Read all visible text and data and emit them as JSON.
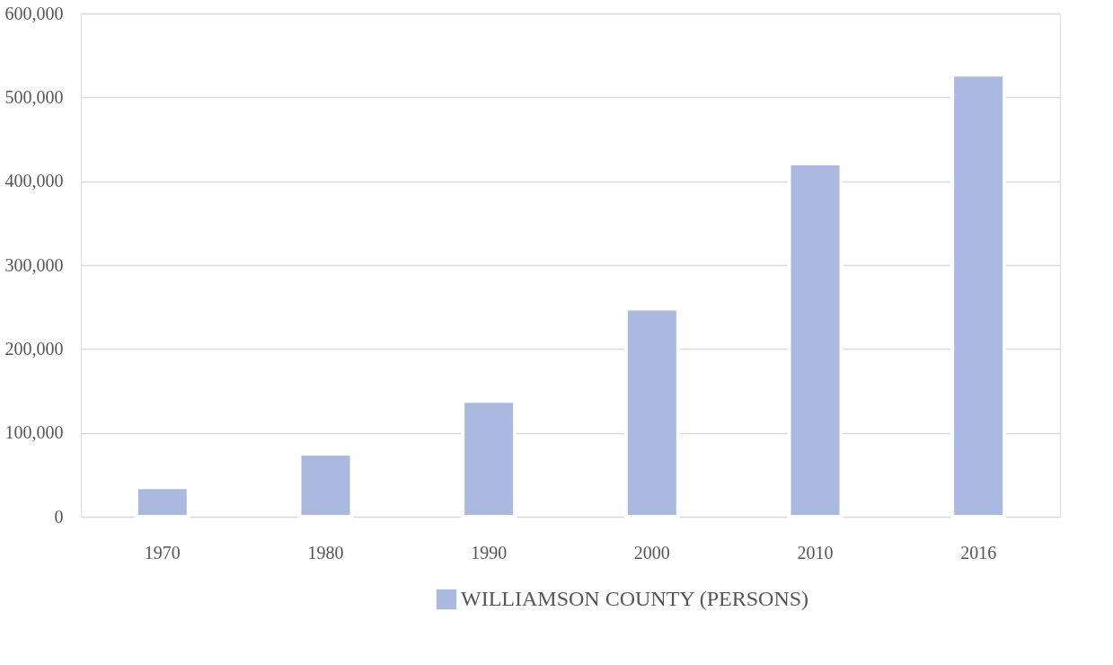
{
  "chart_data": {
    "type": "bar",
    "categories": [
      "1970",
      "1980",
      "1990",
      "2000",
      "2010",
      "2016"
    ],
    "series": [
      {
        "name": "WILLIAMSON COUNTY (PERSONS)",
        "color": "#a9b9e0",
        "values": [
          35000,
          75000,
          138000,
          248000,
          421000,
          527000
        ]
      }
    ],
    "ylim": [
      0,
      600000
    ],
    "yticks": [
      0,
      {
        "value": 100000,
        "label": "100,000"
      },
      {
        "value": 200000,
        "label": "200,000"
      },
      {
        "value": 300000,
        "label": "300,000"
      },
      {
        "value": 400000,
        "label": "400,000"
      },
      {
        "value": 500000,
        "label": "500,000"
      },
      {
        "value": 600000,
        "label": "600,000"
      }
    ],
    "grid": "y",
    "legend": "bottom"
  }
}
